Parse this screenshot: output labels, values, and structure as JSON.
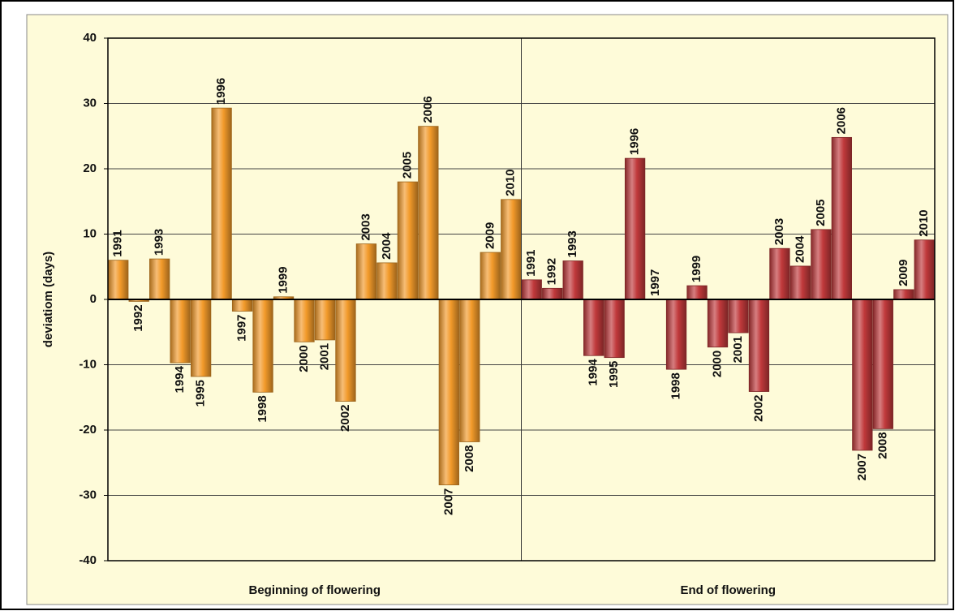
{
  "chart_data": {
    "type": "bar",
    "y_label": "deviatiom (days)",
    "categories": [
      "1991",
      "1992",
      "1993",
      "1994",
      "1995",
      "1996",
      "1997",
      "1998",
      "1999",
      "2000",
      "2001",
      "2002",
      "2003",
      "2004",
      "2005",
      "2006",
      "2007",
      "2008",
      "2009",
      "2010"
    ],
    "series": [
      {
        "name": "Beginning of flowering",
        "color": "#f29a2a",
        "values": [
          6,
          -0.3,
          6.2,
          -9.7,
          -11.8,
          29.3,
          -1.8,
          -14.2,
          0.4,
          -6.5,
          -6.2,
          -15.6,
          8.5,
          5.6,
          18,
          26.5,
          -28.4,
          -21.8,
          7.2,
          15.3
        ]
      },
      {
        "name": "End of flowering",
        "color": "#c0393b",
        "values": [
          3,
          1.7,
          5.9,
          -8.6,
          -8.9,
          21.6,
          0,
          -10.7,
          2.1,
          -7.3,
          -5.1,
          -14.1,
          7.8,
          5.1,
          10.7,
          24.8,
          -23.1,
          -19.8,
          1.5,
          9.1
        ]
      }
    ],
    "ylim": [
      -40,
      40
    ],
    "yticks": [
      -40,
      -30,
      -20,
      -10,
      0,
      10,
      20,
      30,
      40
    ],
    "grid": true
  }
}
